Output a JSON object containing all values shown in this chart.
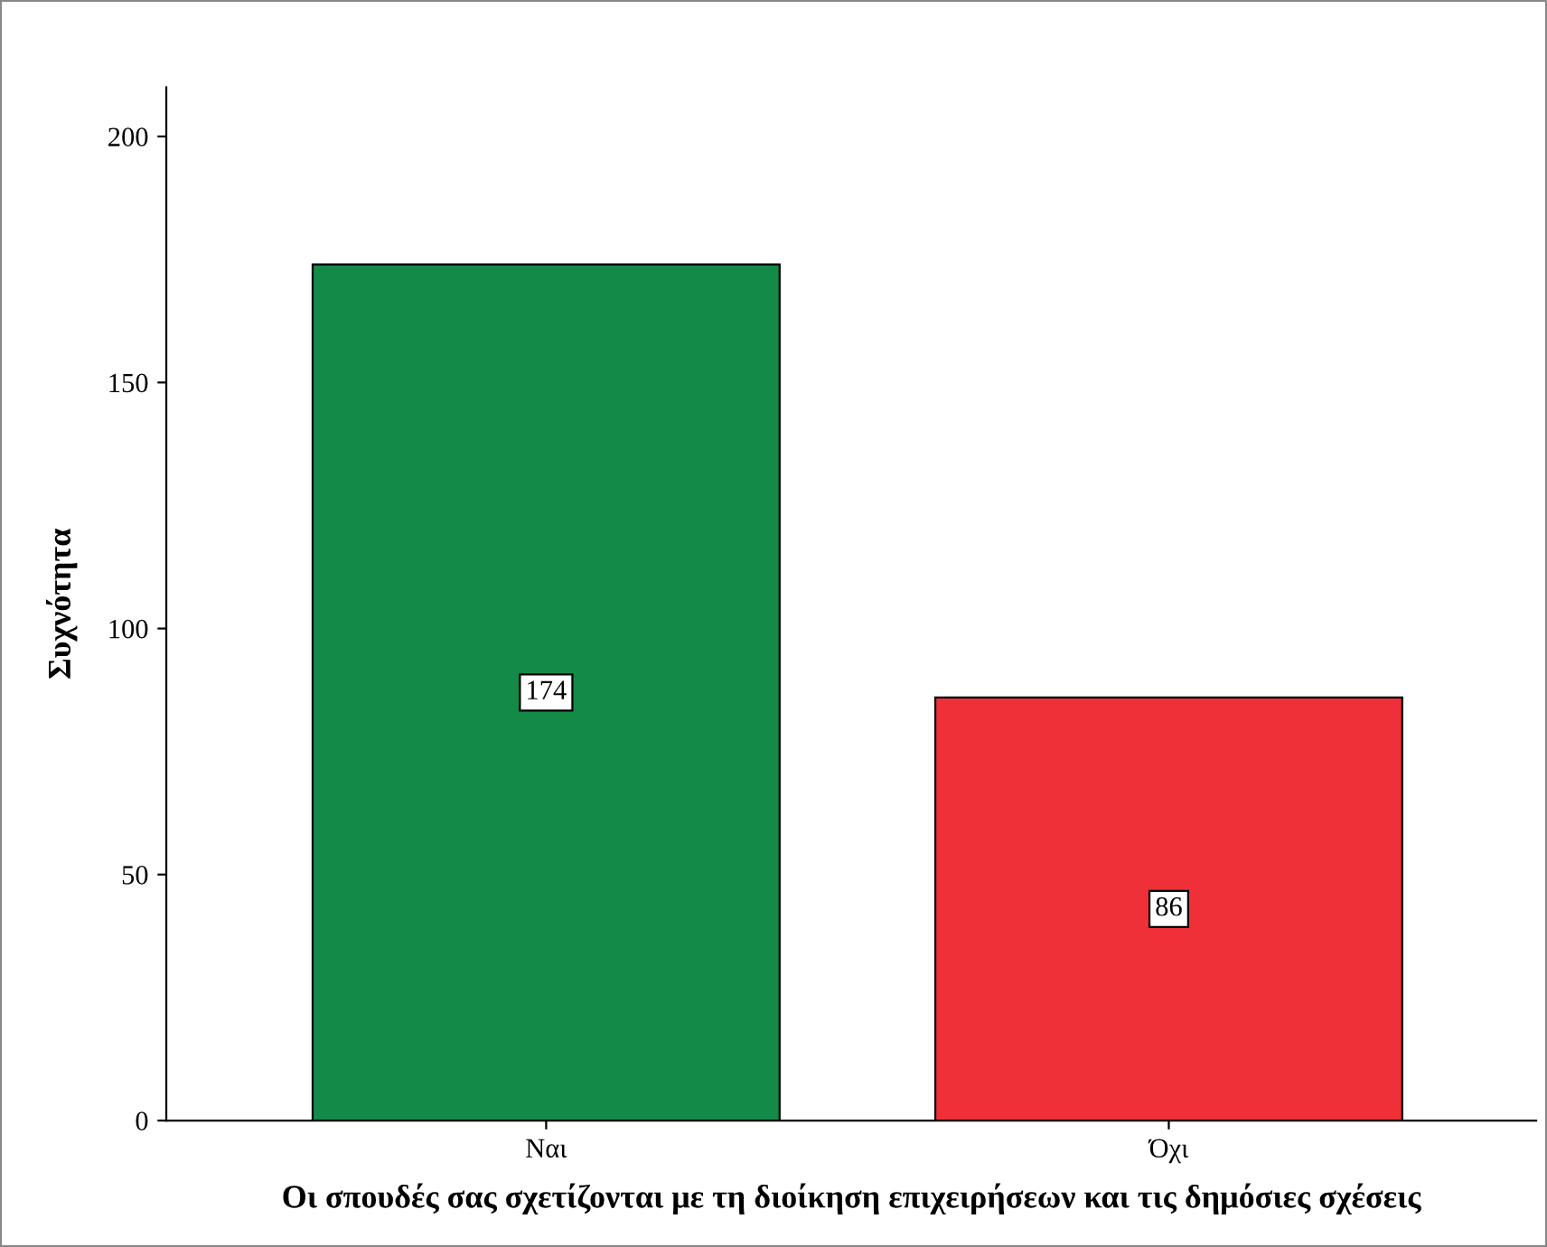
{
  "chart_data": {
    "type": "bar",
    "xlabel": "Οι σπουδές σας σχετίζονται με τη διοίκηση επιχειρήσεων και τις δημόσιες σχέσεις",
    "ylabel": "Συχνότητα",
    "categories": [
      "Ναι",
      "Όχι"
    ],
    "values": [
      174,
      86
    ],
    "colors": [
      "#138a47",
      "#ef3038"
    ],
    "ylim": [
      0,
      210
    ],
    "yticks": [
      0,
      50,
      100,
      150,
      200
    ],
    "grid": false,
    "data_labels": true
  }
}
